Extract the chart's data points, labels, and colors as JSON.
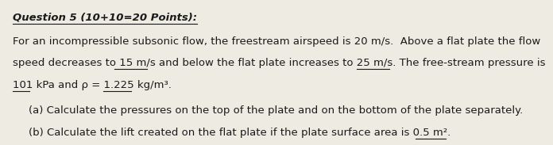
{
  "bg_color": "#eeebe3",
  "title_text": "Question 5 (10+10=20 Points):",
  "line1": "For an incompressible subsonic flow, the freestream airspeed is 20 m/s.  Above a flat plate the flow",
  "line2": "speed decreases to 15 m/s and below the flat plate increases to 25 m/s. The free-stream pressure is",
  "line3": "101 kPa and ρ = 1.225 kg/m³.",
  "line4": "(a) Calculate the pressures on the top of the plate and on the bottom of the plate separately.",
  "line5": "(b) Calculate the lift created on the flat plate if the plate surface area is 0.5 m².",
  "title_fontsize": 9.5,
  "body_fontsize": 9.5,
  "text_color": "#1a1a1a",
  "underlines": {
    "line2_spans": [
      "15 m/s",
      "25 m/s"
    ],
    "line3_spans": [
      "101",
      "1.225"
    ],
    "line5_spans": [
      "0.5 m²"
    ]
  }
}
